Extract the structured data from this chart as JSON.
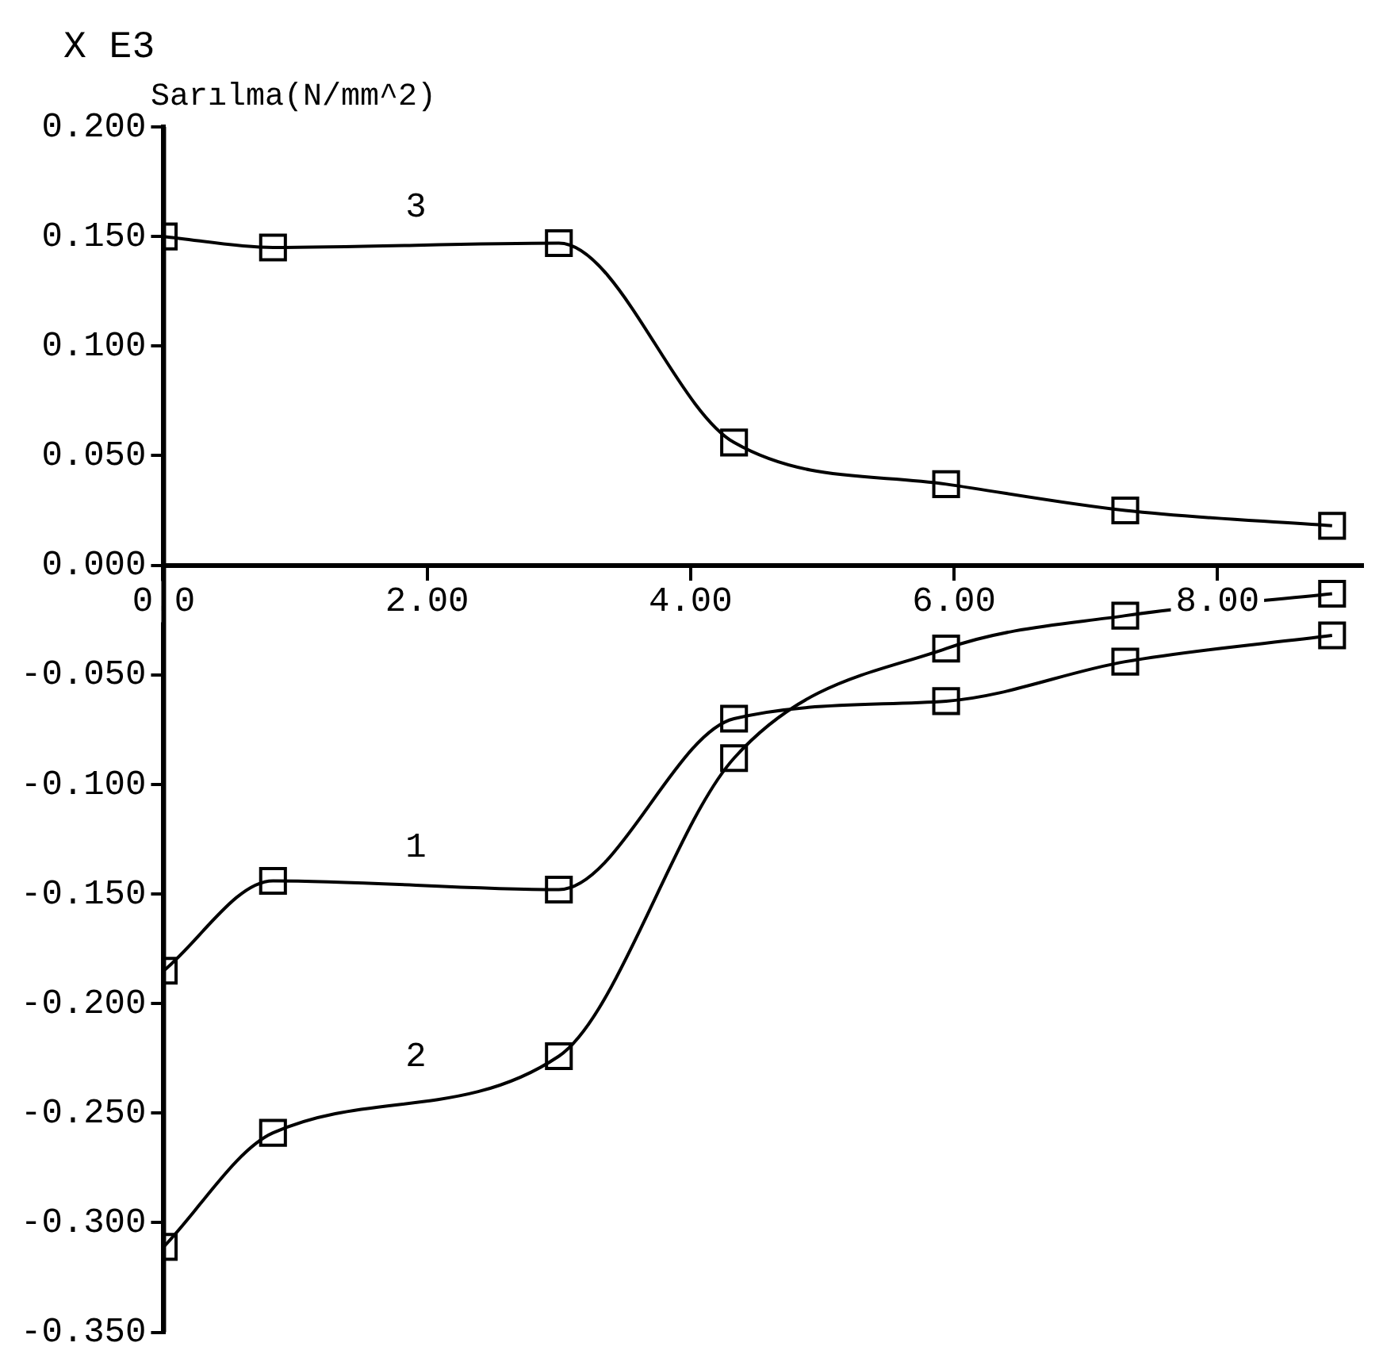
{
  "chart_data": {
    "type": "line",
    "ylabel": "Sarılma(N/mm^2)",
    "annotations": [
      "X E3"
    ],
    "x": [
      0,
      0.83,
      3.0,
      4.33,
      5.94,
      7.3,
      8.87
    ],
    "series": [
      {
        "name": "1",
        "color": "#000000",
        "values": [
          -0.185,
          -0.144,
          -0.148,
          -0.07,
          -0.062,
          -0.044,
          -0.032
        ]
      },
      {
        "name": "2",
        "color": "#000000",
        "values": [
          -0.311,
          -0.259,
          -0.224,
          -0.088,
          -0.038,
          -0.023,
          -0.013
        ]
      },
      {
        "name": "3",
        "color": "#000000",
        "values": [
          0.15,
          0.145,
          0.147,
          0.056,
          0.037,
          0.025,
          0.018
        ]
      }
    ],
    "xlim": [
      0,
      9.1
    ],
    "ylim": [
      -0.35,
      0.2
    ],
    "xticks": [
      {
        "value": 0,
        "label": "0.0"
      },
      {
        "value": 2,
        "label": "2.00"
      },
      {
        "value": 4,
        "label": "4.00"
      },
      {
        "value": 6,
        "label": "6.00"
      },
      {
        "value": 8,
        "label": "8.00"
      }
    ],
    "yticks": [
      {
        "value": -0.35,
        "label": "-0.350"
      },
      {
        "value": -0.3,
        "label": "-0.300"
      },
      {
        "value": -0.25,
        "label": "-0.250"
      },
      {
        "value": -0.2,
        "label": "-0.200"
      },
      {
        "value": -0.15,
        "label": "-0.150"
      },
      {
        "value": -0.1,
        "label": "-0.100"
      },
      {
        "value": -0.05,
        "label": "-0.050"
      },
      {
        "value": 0,
        "label": "0.000"
      },
      {
        "value": 0.05,
        "label": "0.050"
      },
      {
        "value": 0.1,
        "label": "0.100"
      },
      {
        "value": 0.15,
        "label": "0.150"
      },
      {
        "value": 0.2,
        "label": "0.200"
      }
    ],
    "grid": false,
    "legend": false,
    "marker": "square",
    "line_style": "solid"
  }
}
